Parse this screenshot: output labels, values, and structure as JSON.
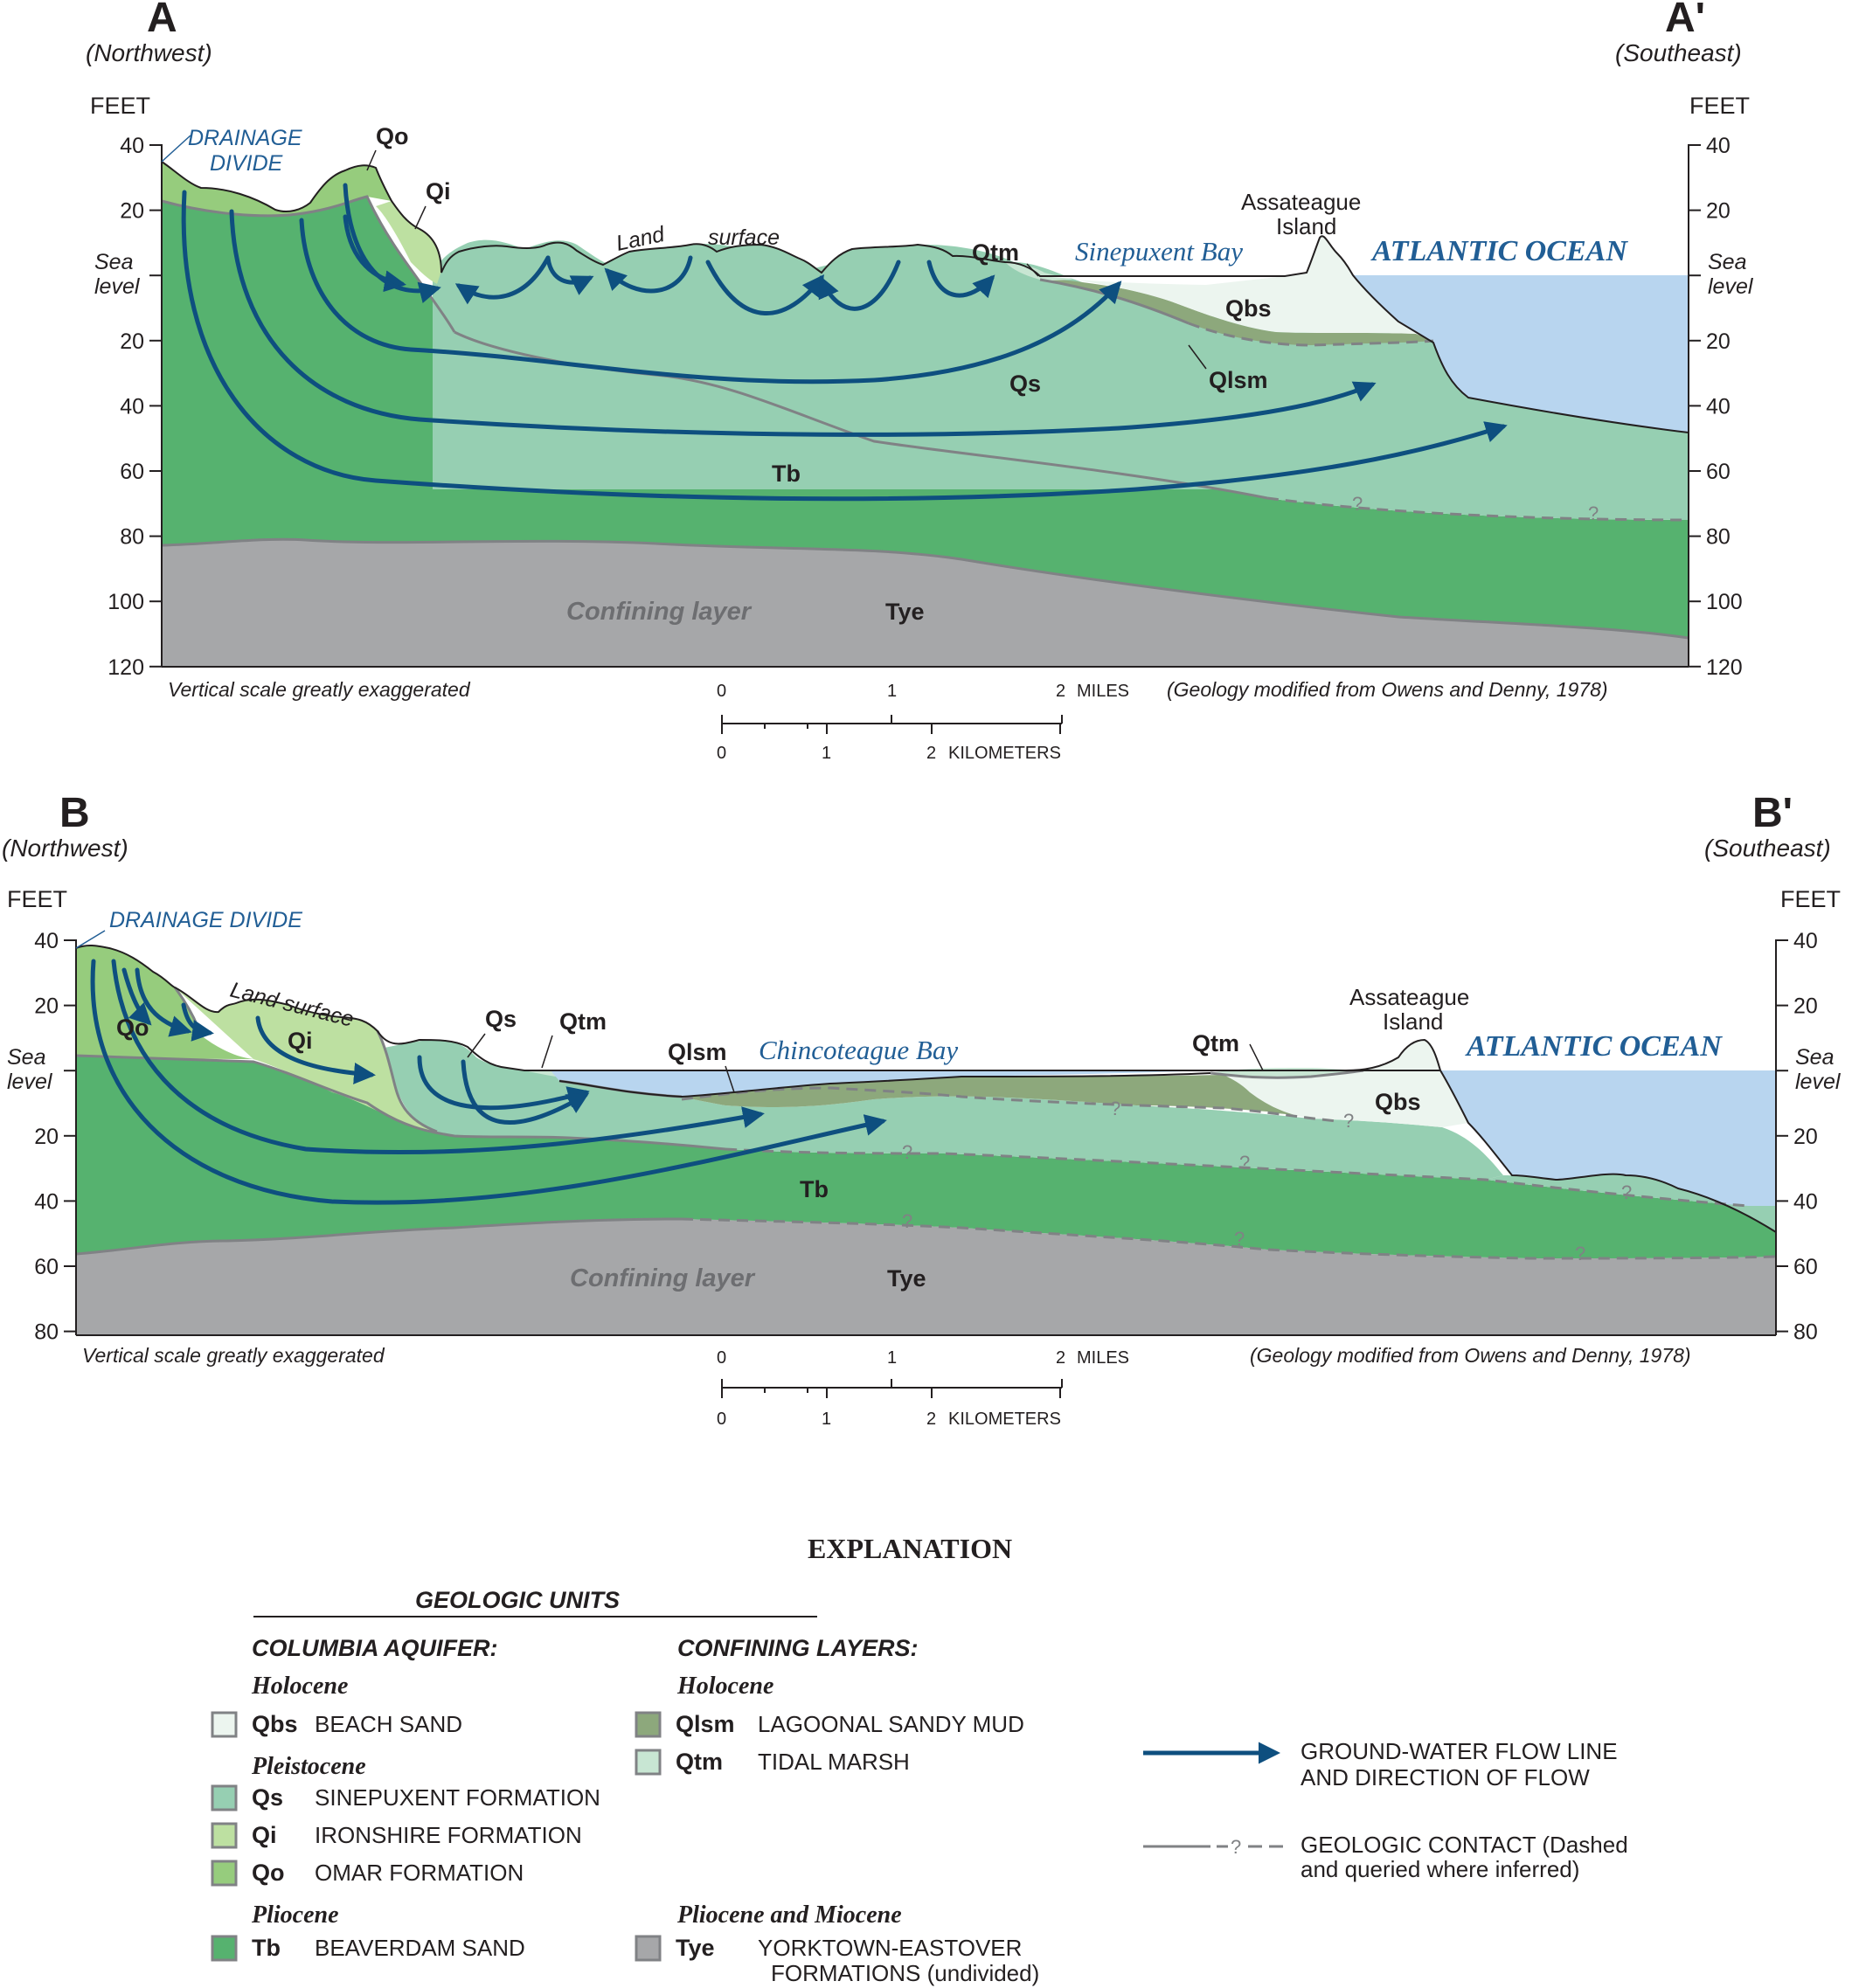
{
  "colors": {
    "Qbs": "#ecf5ef",
    "Qs": "#96cfb2",
    "Qi": "#bde0a1",
    "Qo": "#96cc7d",
    "Tb": "#56b26f",
    "Qlsm": "#8da87c",
    "Qtm": "#c8e6d3",
    "Tye": "#a6a7a9",
    "water": "#b8d5ef",
    "flow_line": "#0e4f7f",
    "contact_line": "#808285",
    "blue_label": "#215e95"
  },
  "section_a": {
    "left_letter": "A",
    "right_letter": "A'",
    "left_direction": "(Northwest)",
    "right_direction": "(Southeast)",
    "axis_title_left": "FEET",
    "axis_title_right": "FEET",
    "ticks": [
      "40",
      "20",
      "",
      "20",
      "40",
      "60",
      "80",
      "100",
      "120"
    ],
    "sea_level_left": [
      "Sea",
      "level"
    ],
    "sea_level_right": [
      "Sea",
      "level"
    ],
    "drainage_divide": [
      "DRAINAGE",
      "DIVIDE"
    ],
    "land_surface_words": [
      "Land",
      "surface"
    ],
    "bay_label": "Sinepuxent Bay",
    "island_label": [
      "Assateague",
      "Island"
    ],
    "ocean_label": "ATLANTIC  OCEAN",
    "unit_labels": {
      "Qo": "Qo",
      "Qi": "Qi",
      "Qtm": "Qtm",
      "Qbs": "Qbs",
      "Qs": "Qs",
      "Qlsm": "Qlsm",
      "Tb": "Tb",
      "Tye": "Tye"
    },
    "confining_label": "Confining layer",
    "query_marks": [
      "?",
      "?"
    ],
    "vertical_note": "Vertical scale greatly exaggerated",
    "source_note": "(Geology modified from Owens and Denny, 1978)",
    "scale_miles": [
      "0",
      "1",
      "2",
      "MILES"
    ],
    "scale_km": [
      "0",
      "1",
      "2",
      "KILOMETERS"
    ]
  },
  "section_b": {
    "left_letter": "B",
    "right_letter": "B'",
    "left_direction": "(Northwest)",
    "right_direction": "(Southeast)",
    "axis_title_left": "FEET",
    "axis_title_right": "FEET",
    "ticks": [
      "40",
      "20",
      "",
      "20",
      "40",
      "60",
      "80"
    ],
    "sea_level_left": [
      "Sea",
      "level"
    ],
    "sea_level_right": [
      "Sea",
      "level"
    ],
    "drainage_divide": "DRAINAGE DIVIDE",
    "land_surface": "Land surface",
    "bay_label": "Chincoteague Bay",
    "island_label": [
      "Assateague",
      "Island"
    ],
    "ocean_label": "ATLANTIC  OCEAN",
    "unit_labels": {
      "Qo": "Qo",
      "Qi": "Qi",
      "Qs": "Qs",
      "Qtm_left": "Qtm",
      "Qlsm": "Qlsm",
      "Qtm_right": "Qtm",
      "Qbs": "Qbs",
      "Tb": "Tb",
      "Tye": "Tye"
    },
    "confining_label": "Confining layer",
    "query_marks": [
      "?",
      "?",
      "?",
      "?",
      "?",
      "?",
      "?",
      "?"
    ],
    "vertical_note": "Vertical scale greatly exaggerated",
    "source_note": "(Geology modified from Owens and Denny, 1978)",
    "scale_miles": [
      "0",
      "1",
      "2",
      "MILES"
    ],
    "scale_km": [
      "0",
      "1",
      "2",
      "KILOMETERS"
    ]
  },
  "explanation": {
    "title": "EXPLANATION",
    "geologic_units_heading": "GEOLOGIC UNITS",
    "columbia_heading": "COLUMBIA AQUIFER:",
    "confining_heading": "CONFINING LAYERS:",
    "left_column": [
      {
        "epoch": "Holocene"
      },
      {
        "unit": "Qbs",
        "name": "BEACH SAND"
      },
      {
        "epoch": "Pleistocene"
      },
      {
        "unit": "Qs",
        "name": "SINEPUXENT FORMATION"
      },
      {
        "unit": "Qi",
        "name": "IRONSHIRE FORMATION"
      },
      {
        "unit": "Qo",
        "name": "OMAR FORMATION"
      },
      {
        "epoch": "Pliocene"
      },
      {
        "unit": "Tb",
        "name": "BEAVERDAM SAND"
      }
    ],
    "right_column": [
      {
        "epoch": "Holocene"
      },
      {
        "unit": "Qlsm",
        "name": "LAGOONAL SANDY MUD"
      },
      {
        "unit": "Qtm",
        "name": "TIDAL MARSH"
      },
      {
        "epoch": "Pliocene and Miocene"
      },
      {
        "unit": "Tye",
        "name": [
          "YORKTOWN-EASTOVER",
          "FORMATIONS (undivided)"
        ]
      }
    ],
    "flow_legend": [
      "GROUND-WATER FLOW LINE",
      "AND DIRECTION OF FLOW"
    ],
    "contact_legend": [
      "GEOLOGIC CONTACT (Dashed",
      "and queried where inferred)"
    ],
    "contact_mark": "?"
  }
}
